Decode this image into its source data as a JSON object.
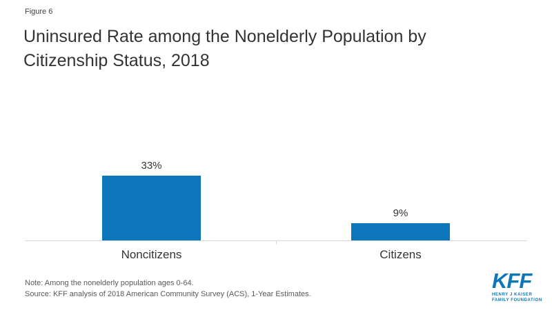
{
  "figure_label": "Figure 6",
  "title": "Uninsured Rate among the Nonelderly Population by Citizenship Status, 2018",
  "note": "Note: Among the nonelderly population ages 0-64.",
  "source": "Source: KFF analysis of 2018 American Community Survey (ACS), 1-Year Estimates.",
  "logo": {
    "text": "KFF",
    "subtext_line1": "HENRY J KAISER",
    "subtext_line2": "FAMILY FOUNDATION"
  },
  "colors": {
    "bar": "#0b76ba",
    "axis": "#d8d8d8",
    "title_text": "#333333",
    "note_text": "#595959",
    "logo_blue": "#0b76ba"
  },
  "chart_data": {
    "type": "bar",
    "categories": [
      "Noncitizens",
      "Citizens"
    ],
    "values": [
      33,
      9
    ],
    "value_labels": [
      "33%",
      "9%"
    ],
    "title": "Uninsured Rate among the Nonelderly Population by Citizenship Status, 2018",
    "xlabel": "",
    "ylabel": "",
    "ylim": [
      0,
      40
    ],
    "grid": false,
    "legend": false,
    "bar_color": "#0b76ba"
  }
}
